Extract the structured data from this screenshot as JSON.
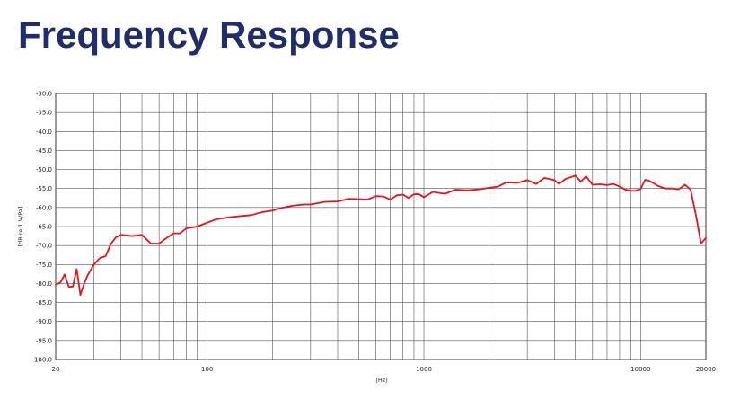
{
  "page": {
    "title": "Frequency Response"
  },
  "chart_data": {
    "type": "line",
    "title": "Frequency Response",
    "xlabel": "[Hz]",
    "ylabel": "[dB re 1 V/Pa]",
    "xscale": "log",
    "xlim": [
      20,
      20000
    ],
    "ylim": [
      -100,
      -30
    ],
    "grid": true,
    "colors": {
      "series": "#e8141c",
      "grid": "#555555",
      "title": "#1f2d6e"
    },
    "x_tick_labels": [
      {
        "value": 20,
        "label": "20"
      },
      {
        "value": 100,
        "label": "100"
      },
      {
        "value": 1000,
        "label": "1000"
      },
      {
        "value": 10000,
        "label": "10000"
      },
      {
        "value": 20000,
        "label": "20000"
      }
    ],
    "y_tick_labels": [
      "-30.0",
      "-35.0",
      "-40.0",
      "-45.0",
      "-50.0",
      "-55.0",
      "-60.0",
      "-65.0",
      "-70.0",
      "-75.0",
      "-80.0",
      "-85.0",
      "-90.0",
      "-95.0",
      "-100.0"
    ],
    "series": [
      {
        "x": [
          20,
          21,
          22,
          23,
          24,
          25,
          26,
          27,
          28,
          30,
          32,
          34,
          36,
          38,
          40,
          45,
          50,
          55,
          60,
          65,
          70,
          75,
          80,
          90,
          100,
          110,
          125,
          140,
          160,
          180,
          200,
          220,
          250,
          280,
          300,
          350,
          400,
          450,
          500,
          550,
          600,
          650,
          700,
          750,
          800,
          850,
          900,
          950,
          1000,
          1100,
          1250,
          1400,
          1600,
          1800,
          2000,
          2200,
          2400,
          2700,
          3000,
          3300,
          3600,
          4000,
          4200,
          4500,
          5000,
          5300,
          5600,
          6000,
          6500,
          7000,
          7500,
          8000,
          8500,
          9000,
          9500,
          10000,
          10500,
          11000,
          12000,
          13000,
          14000,
          15000,
          16000,
          17000,
          18000,
          19000,
          20000
        ],
        "y": [
          -80.3,
          -79.8,
          -77.6,
          -80.9,
          -80.8,
          -76.2,
          -83.0,
          -80.2,
          -78.0,
          -75.0,
          -73.3,
          -72.8,
          -69.5,
          -67.8,
          -67.2,
          -67.5,
          -67.2,
          -69.5,
          -69.5,
          -68.0,
          -66.8,
          -66.8,
          -65.5,
          -65.0,
          -64.0,
          -63.1,
          -62.6,
          -62.3,
          -62.0,
          -61.2,
          -60.8,
          -60.1,
          -59.5,
          -59.2,
          -59.2,
          -58.5,
          -58.4,
          -57.7,
          -57.8,
          -57.9,
          -57.0,
          -57.1,
          -57.9,
          -56.8,
          -56.6,
          -57.5,
          -56.5,
          -56.5,
          -57.3,
          -55.9,
          -56.4,
          -55.3,
          -55.5,
          -55.2,
          -54.8,
          -54.5,
          -53.4,
          -53.5,
          -52.8,
          -53.8,
          -52.2,
          -52.8,
          -53.8,
          -52.5,
          -51.6,
          -53.2,
          -51.8,
          -54.0,
          -53.9,
          -54.1,
          -53.8,
          -54.5,
          -55.3,
          -55.6,
          -55.6,
          -55.1,
          -52.7,
          -53.0,
          -54.3,
          -55.0,
          -55.0,
          -55.2,
          -54.0,
          -55.3,
          -62.0,
          -69.5,
          -68.0
        ]
      }
    ]
  }
}
